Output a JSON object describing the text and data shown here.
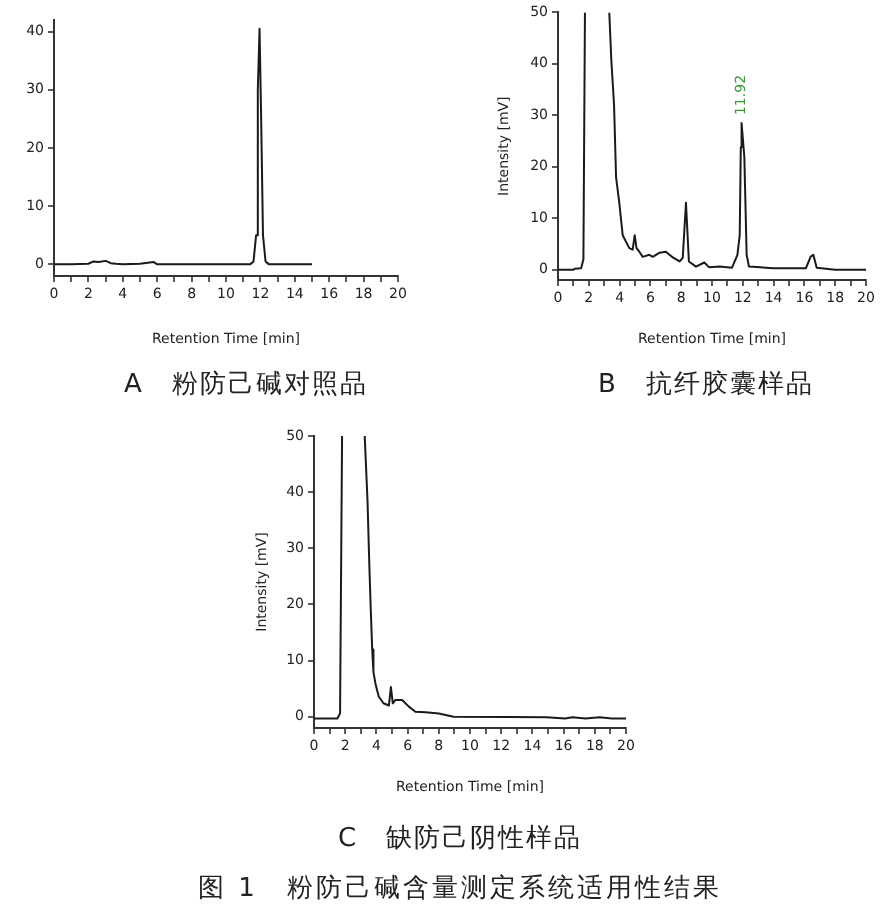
{
  "chart_data": [
    {
      "type": "line",
      "title": "A　粉防己碱对照品",
      "xlabel": "Retention Time [min]",
      "xlim": [
        0,
        20
      ],
      "ylim": [
        -2,
        42
      ],
      "xticks": [
        0,
        {
          "value": 1,
          "label": null
        },
        2,
        {
          "value": 3,
          "label": null
        },
        4,
        {
          "value": 5,
          "label": null
        },
        6,
        {
          "value": 7,
          "label": null
        },
        8,
        {
          "value": 9,
          "label": null
        },
        10,
        {
          "value": 11,
          "label": null
        },
        12,
        {
          "value": 13,
          "label": null
        },
        14,
        {
          "value": 15,
          "label": null
        },
        16,
        {
          "value": 17,
          "label": null
        },
        18,
        {
          "value": 19,
          "label": null
        },
        20
      ],
      "yticks": [
        0,
        10,
        20,
        30,
        40
      ],
      "x": [
        0,
        1,
        2,
        2.3,
        2.6,
        3,
        3.3,
        3.6,
        4,
        5,
        5.8,
        6,
        7,
        8,
        9,
        10,
        11,
        11.4,
        11.6,
        11.75,
        11.85,
        11.95,
        12.05,
        12.15,
        12.3,
        12.5,
        13,
        14,
        15
      ],
      "series": [
        {
          "color": "#1a1a1a",
          "values": [
            0,
            0,
            0.1,
            0.5,
            0.4,
            0.6,
            0.2,
            0.1,
            0,
            0.1,
            0.4,
            0,
            0,
            0,
            0,
            0,
            0,
            0,
            0.5,
            5,
            30,
            40.5,
            24,
            5,
            0.5,
            0,
            0,
            0,
            0
          ]
        }
      ]
    },
    {
      "type": "line",
      "title": "B　抗纤胶囊样品",
      "xlabel": "Retention Time [min]",
      "ylabel": "Intensity [mV]",
      "xlim": [
        0,
        20
      ],
      "ylim": [
        -2,
        50
      ],
      "xticks": [
        0,
        {
          "value": 1,
          "label": null
        },
        2,
        {
          "value": 3,
          "label": null
        },
        4,
        {
          "value": 5,
          "label": null
        },
        6,
        {
          "value": 7,
          "label": null
        },
        8,
        {
          "value": 9,
          "label": null
        },
        10,
        {
          "value": 11,
          "label": null
        },
        12,
        {
          "value": 13,
          "label": null
        },
        14,
        {
          "value": 15,
          "label": null
        },
        16,
        {
          "value": 17,
          "label": null
        },
        18,
        {
          "value": 19,
          "label": null
        },
        20
      ],
      "yticks": [
        0,
        10,
        20,
        30,
        40,
        50
      ],
      "annotations": [
        {
          "text": "11.92",
          "x": 11.92,
          "y": 28.5
        }
      ],
      "x": [
        0,
        1,
        1.1,
        1.5,
        1.65,
        1.75,
        1.76,
        3.33,
        3.46,
        3.64,
        3.77,
        3.98,
        4.2,
        4.63,
        4.85,
        4.98,
        5.1,
        5.28,
        5.5,
        5.93,
        6.15,
        6.6,
        7.0,
        7.45,
        7.9,
        8.1,
        8.31,
        8.5,
        8.96,
        9.5,
        9.8,
        10.5,
        11.3,
        11.65,
        11.8,
        11.87,
        11.92,
        12.1,
        12.25,
        12.4,
        14,
        16.1,
        16.4,
        16.58,
        16.8,
        18,
        20
      ],
      "series": [
        {
          "color": "#1a1a1a",
          "values": [
            0,
            0,
            0.2,
            0.3,
            2,
            50,
            null,
            50,
            40.9,
            32,
            18,
            13,
            6.7,
            4.2,
            3.9,
            6.7,
            4.2,
            3.5,
            2.5,
            2.9,
            2.5,
            3.3,
            3.5,
            2.4,
            1.6,
            2.3,
            13,
            1.6,
            0.6,
            1.4,
            0.5,
            0.6,
            0.4,
            2.9,
            6.7,
            23.8,
            28.5,
            21.9,
            2.9,
            0.6,
            0.3,
            0.3,
            2.5,
            2.9,
            0.4,
            0,
            0
          ]
        }
      ]
    },
    {
      "type": "line",
      "title": "C　缺防己阴性样品",
      "xlabel": "Retention Time [min]",
      "ylabel": "Intensity [mV]",
      "xlim": [
        0,
        20
      ],
      "ylim": [
        -2,
        50
      ],
      "xticks": [
        0,
        {
          "value": 1,
          "label": null
        },
        2,
        {
          "value": 3,
          "label": null
        },
        4,
        {
          "value": 5,
          "label": null
        },
        6,
        {
          "value": 7,
          "label": null
        },
        8,
        {
          "value": 9,
          "label": null
        },
        10,
        {
          "value": 11,
          "label": null
        },
        12,
        {
          "value": 13,
          "label": null
        },
        14,
        {
          "value": 15,
          "label": null
        },
        16,
        {
          "value": 17,
          "label": null
        },
        18,
        {
          "value": 19,
          "label": null
        },
        20
      ],
      "yticks": [
        0,
        10,
        20,
        30,
        40,
        50
      ],
      "annotations": [
        "图 1　粉防己碱含量测定系统适用性结果"
      ],
      "x": [
        0,
        1.5,
        1.67,
        1.8,
        1.81,
        3.25,
        3.43,
        3.55,
        3.64,
        3.73,
        3.81,
        3.94,
        4.15,
        4.45,
        4.8,
        4.93,
        5.05,
        5.22,
        5.65,
        6.08,
        6.5,
        7.15,
        8.0,
        8.95,
        14.9,
        16.1,
        16.57,
        17.4,
        18.3,
        19.1,
        20
      ],
      "series": [
        {
          "color": "#1a1a1a",
          "values": [
            -0.3,
            -0.3,
            0.6,
            50,
            null,
            50,
            38.5,
            26.7,
            19,
            12,
            8,
            5.9,
            3.6,
            2.4,
            2.0,
            5.3,
            2.4,
            3.0,
            3.0,
            1.8,
            0.9,
            0.8,
            0.6,
            0,
            -0.1,
            -0.3,
            -0.1,
            -0.3,
            -0.1,
            -0.3,
            -0.3
          ]
        }
      ]
    }
  ]
}
